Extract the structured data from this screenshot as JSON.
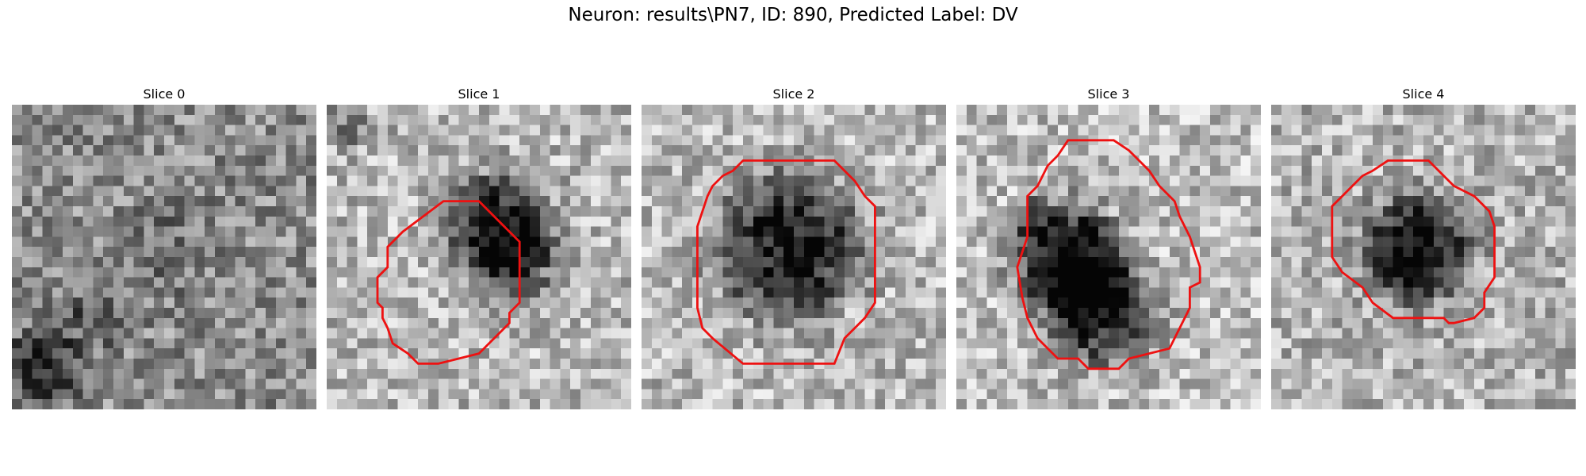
{
  "figure": {
    "title": "Neuron: results\\PN7, ID: 890, Predicted Label: DV",
    "contour_color": "#ee1111",
    "panels": [
      {
        "label": "Slice 0",
        "has_contour": false
      },
      {
        "label": "Slice 1",
        "has_contour": true
      },
      {
        "label": "Slice 2",
        "has_contour": true
      },
      {
        "label": "Slice 3",
        "has_contour": true
      },
      {
        "label": "Slice 4",
        "has_contour": true
      }
    ]
  }
}
